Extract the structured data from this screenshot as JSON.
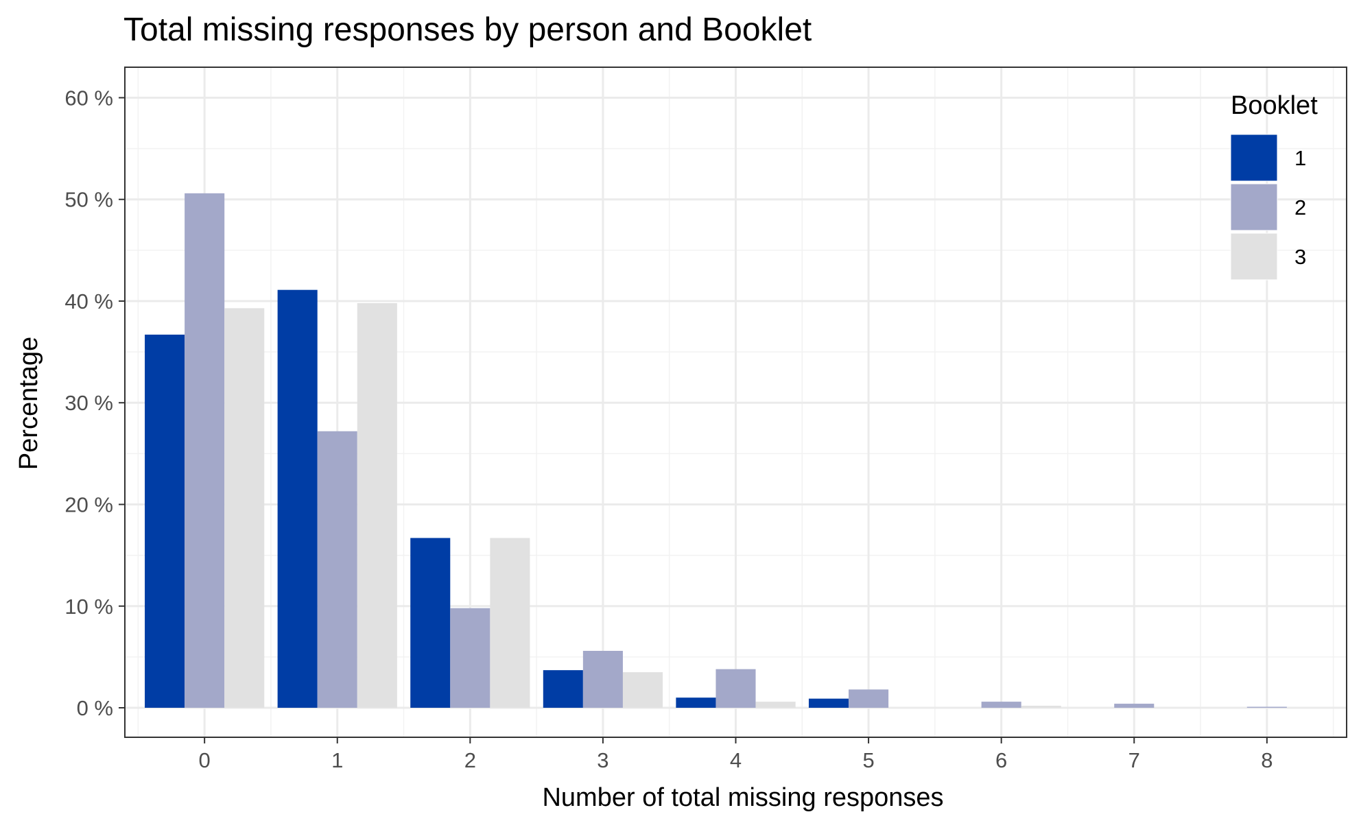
{
  "chart_data": {
    "type": "bar",
    "title": "Total missing responses by person and Booklet",
    "xlabel": "Number of total missing responses",
    "ylabel": "Percentage",
    "categories": [
      "0",
      "1",
      "2",
      "3",
      "4",
      "5",
      "6",
      "7",
      "8"
    ],
    "y_tick_labels": [
      "0 %",
      "10 %",
      "20 %",
      "30 %",
      "40 %",
      "50 %",
      "60 %"
    ],
    "y_tick_values": [
      0,
      10,
      20,
      30,
      40,
      50,
      60
    ],
    "ylim": [
      -2.9,
      63
    ],
    "grid": true,
    "legend": {
      "title": "Booklet",
      "placement": "top-right",
      "entries": [
        "1",
        "2",
        "3"
      ]
    },
    "series": [
      {
        "name": "1",
        "color": "#003DA5",
        "values": [
          36.7,
          41.1,
          16.7,
          3.7,
          1.0,
          0.9,
          0.0,
          0.0,
          0.0
        ]
      },
      {
        "name": "2",
        "color": "#A3A8C9",
        "values": [
          50.6,
          27.2,
          9.8,
          5.6,
          3.8,
          1.8,
          0.6,
          0.4,
          0.1
        ]
      },
      {
        "name": "3",
        "color": "#E1E1E1",
        "values": [
          39.3,
          39.8,
          16.7,
          3.5,
          0.6,
          0.0,
          0.2,
          0.0,
          0.0
        ]
      }
    ]
  }
}
